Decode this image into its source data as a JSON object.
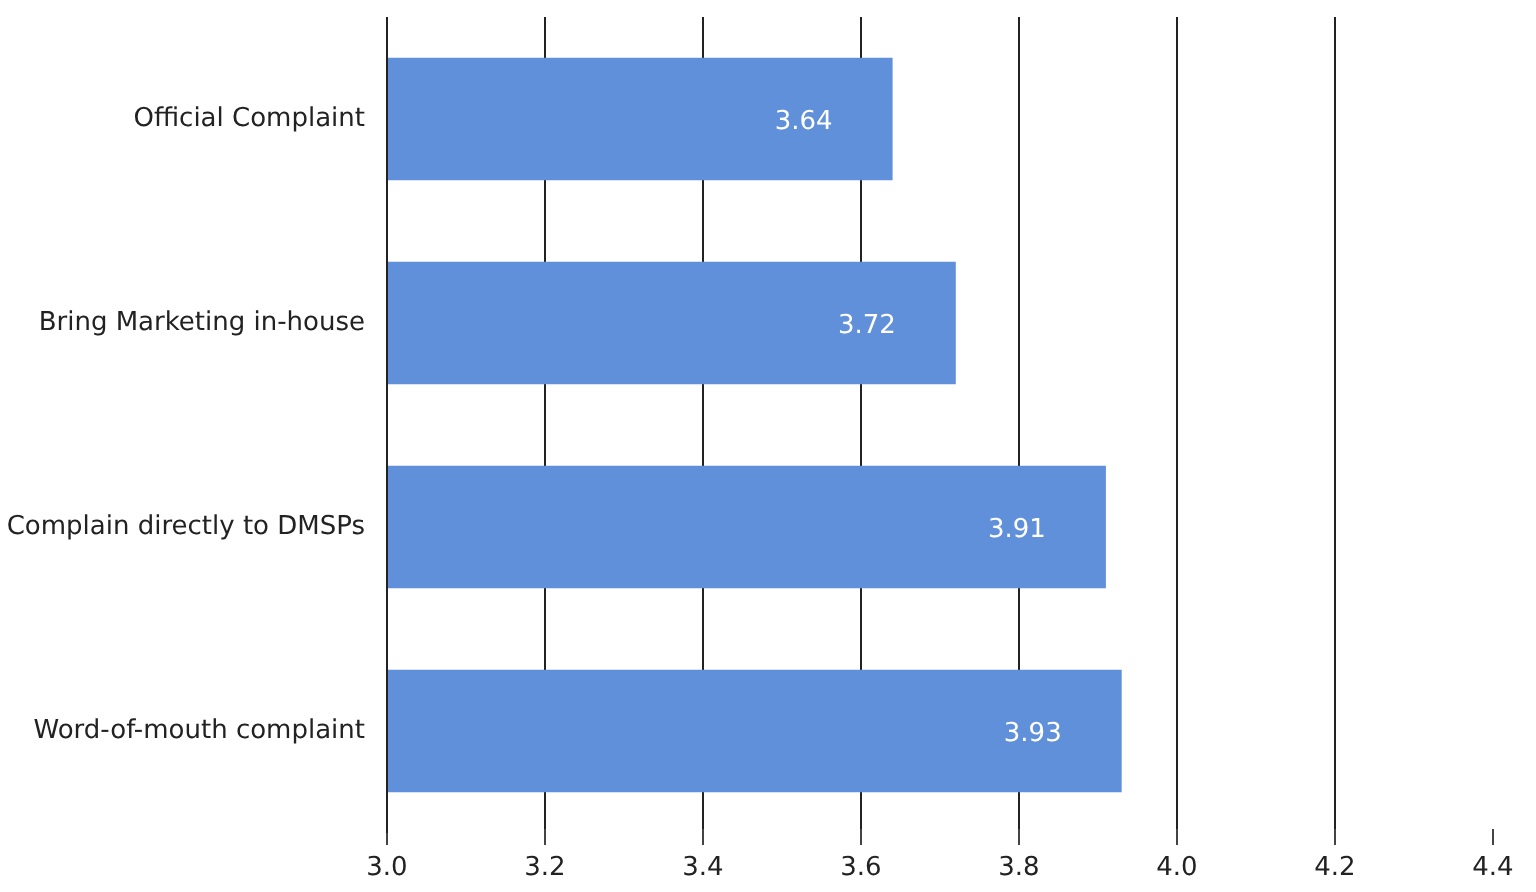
{
  "chart_data": {
    "type": "bar",
    "orientation": "horizontal",
    "categories": [
      "Official Complaint",
      "Bring Marketing in-house",
      "Complain directly to DMSPs",
      "Word-of-mouth complaint"
    ],
    "values": [
      3.64,
      3.72,
      3.91,
      3.93
    ],
    "color": "#6190db",
    "xlim": [
      3.0,
      4.4
    ],
    "xticks": [
      {
        "value": 3,
        "label": "3.0"
      },
      3.2,
      3.4,
      3.6,
      3.8,
      {
        "value": 4,
        "label": "4.0"
      },
      4.2,
      4.4
    ],
    "grid": "x",
    "data_labels": true
  }
}
